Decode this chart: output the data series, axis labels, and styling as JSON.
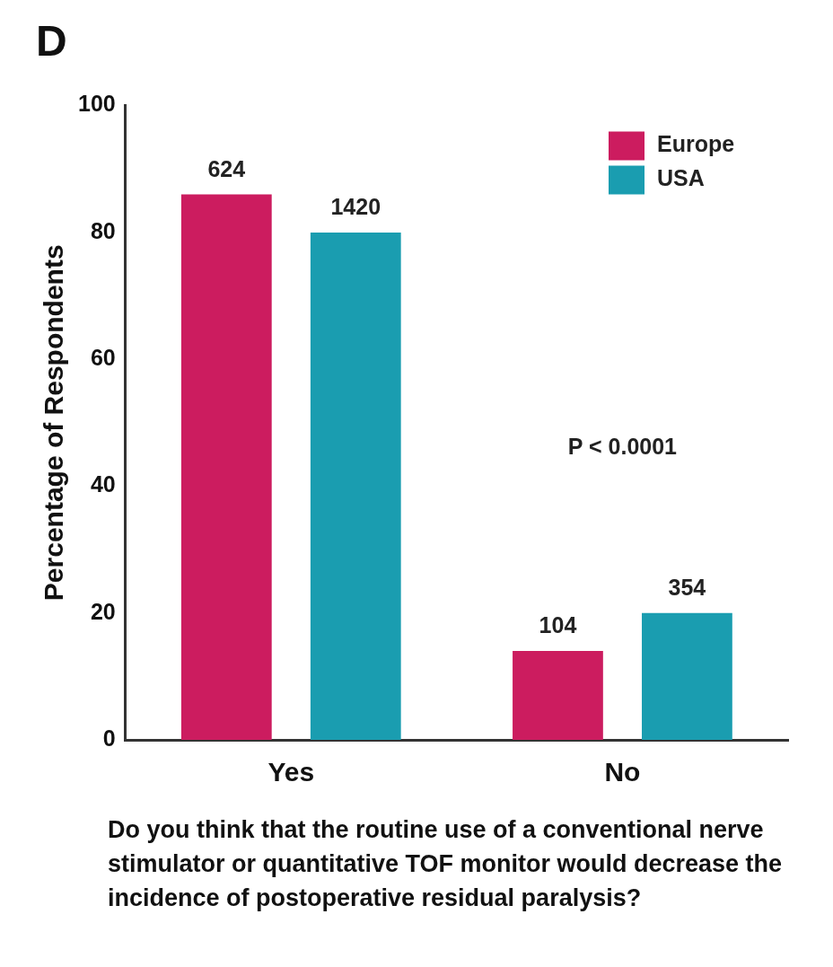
{
  "chart_data": {
    "type": "bar",
    "title": "D",
    "ylabel": "Percentage of Respondents",
    "categories": [
      "Yes",
      "No"
    ],
    "series": [
      {
        "name": "Europe",
        "color": "#cc1c5f",
        "values": [
          86,
          14
        ]
      },
      {
        "name": "USA",
        "color": "#1a9db0",
        "values": [
          80,
          20
        ]
      }
    ],
    "ylim": [
      0,
      100
    ],
    "yticks": [
      0,
      20,
      40,
      60,
      80,
      100
    ],
    "grid": false,
    "legend": "top right",
    "annotations": [
      "P < 0.0001",
      "Do you think that the routine use of a conventional nerve stimulator or quantitative TOF monitor would decrease the incidence of postoperative residual paralysis?",
      "624",
      "1420",
      "104",
      "354"
    ]
  }
}
